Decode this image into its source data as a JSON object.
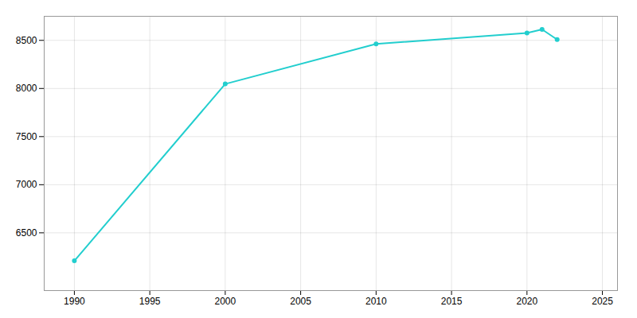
{
  "chart_data": {
    "type": "line",
    "x": [
      1990,
      2000,
      2010,
      2020,
      2021,
      2022
    ],
    "values": [
      6209,
      8047,
      8463,
      8577,
      8614,
      8508
    ],
    "color": "#22cece",
    "marker": "circle",
    "xlim": [
      1988,
      2026
    ],
    "ylim": [
      5900,
      8750
    ],
    "xticks": [
      1990,
      1995,
      2000,
      2005,
      2010,
      2015,
      2020,
      2025
    ],
    "yticks": [
      6500,
      7000,
      7500,
      8000,
      8500
    ],
    "grid": true
  }
}
